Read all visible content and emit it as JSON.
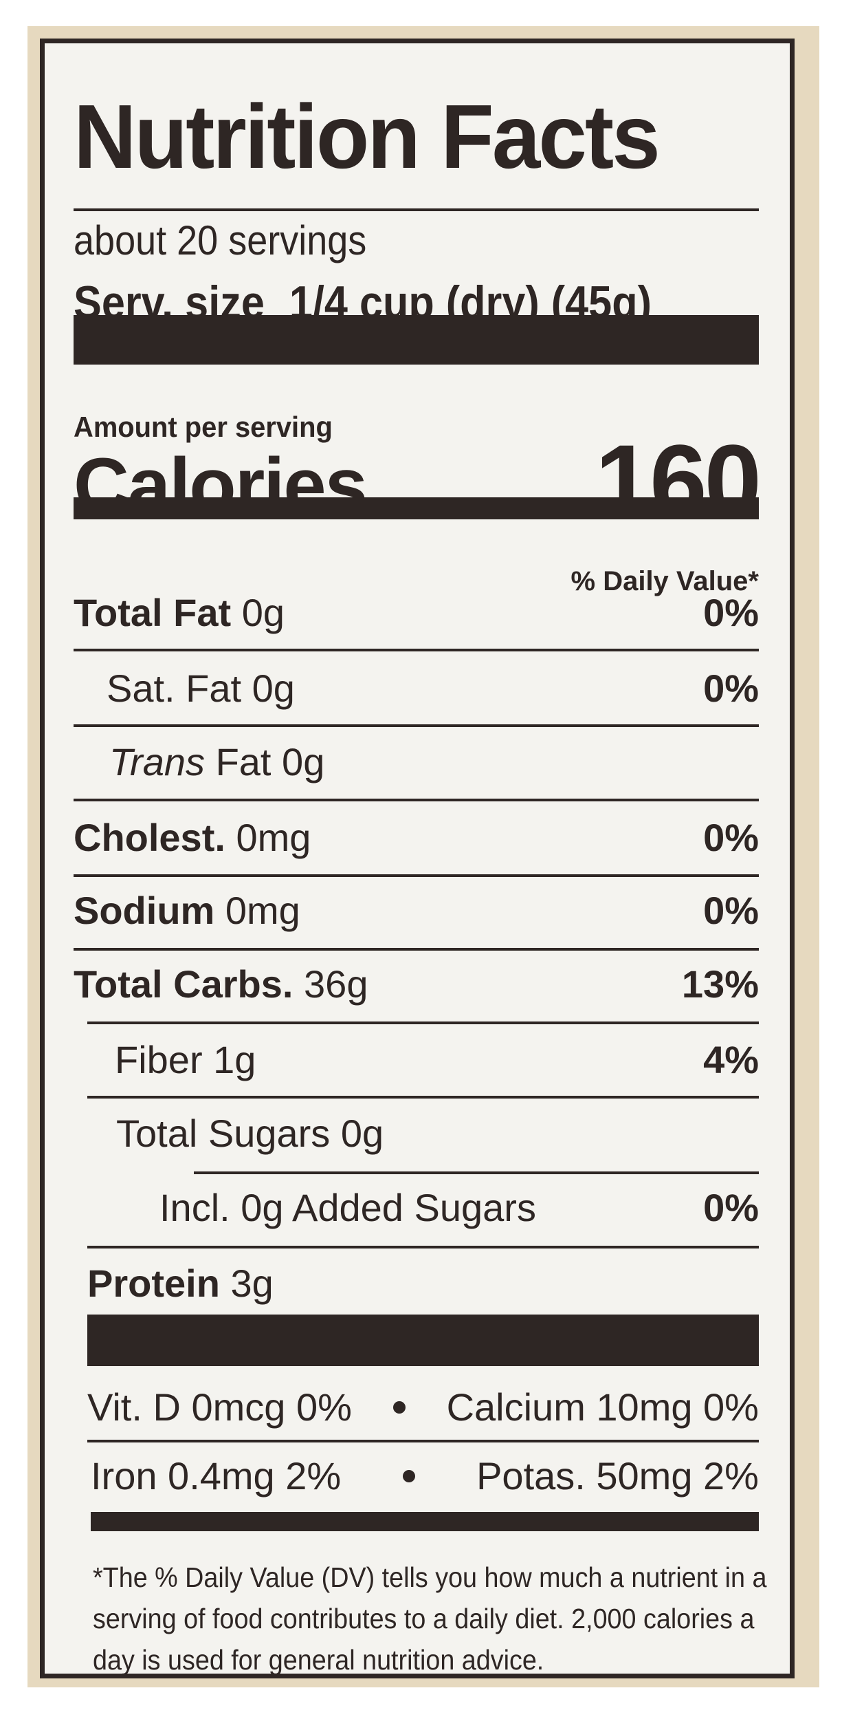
{
  "title": "Nutrition Facts",
  "servings": "about 20 servings",
  "serving_size": {
    "label": "Serv. size",
    "value": "1/4 cup (dry) (45g)"
  },
  "amount_per_serving": "Amount per serving",
  "calories": {
    "label": "Calories",
    "value": "160"
  },
  "dv_header": "% Daily Value*",
  "nutrients": [
    {
      "name": "Total Fat",
      "amount": "0g",
      "dv": "0%"
    },
    {
      "name": "Sat. Fat",
      "amount": "0g",
      "dv": "0%"
    },
    {
      "name": "Trans",
      "suffix": "Fat",
      "amount": "0g",
      "dv": ""
    },
    {
      "name": "Cholest.",
      "amount": "0mg",
      "dv": "0%"
    },
    {
      "name": "Sodium",
      "amount": "0mg",
      "dv": "0%"
    },
    {
      "name": "Total Carbs.",
      "amount": "36g",
      "dv": "13%"
    },
    {
      "name": "Fiber",
      "amount": "1g",
      "dv": "4%"
    },
    {
      "name": "Total Sugars",
      "amount": "0g",
      "dv": ""
    },
    {
      "name": "Incl. 0g Added Sugars",
      "amount": "",
      "dv": "0%"
    },
    {
      "name": "Protein",
      "amount": "3g",
      "dv": ""
    }
  ],
  "vitamins": [
    [
      "Vit. D 0mcg 0%",
      "Calcium 10mg 0%"
    ],
    [
      "Iron 0.4mg 2%",
      "Potas. 50mg 2%"
    ]
  ],
  "footnote": "*The % Daily Value (DV) tells you how much a nutrient in a serving of food contributes to a daily diet. 2,000 calories a day is used for general nutrition advice.",
  "colors": {
    "ink": "#2e2624",
    "label_bg": "#f4f3ef",
    "package": "#e6d9bf"
  }
}
